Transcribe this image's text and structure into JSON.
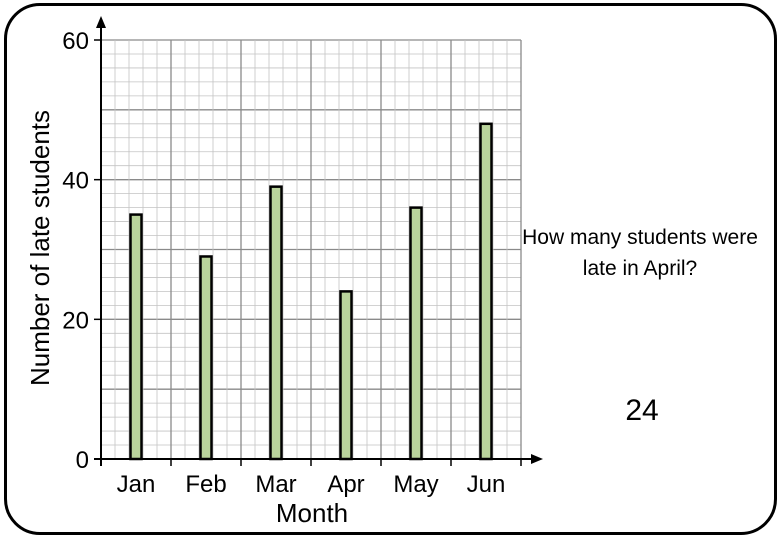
{
  "question": "How many students were late in April?",
  "answer": "24",
  "colors": {
    "bar_fill": "#b9d39b",
    "bar_stroke": "#000000",
    "grid_minor": "#c3c3c3",
    "grid_major": "#8a8a8a"
  },
  "chart_data": {
    "type": "bar",
    "title": "",
    "xlabel": "Month",
    "ylabel": "Number of late students",
    "categories": [
      "Jan",
      "Feb",
      "Mar",
      "Apr",
      "May",
      "Jun"
    ],
    "values": [
      35,
      29,
      39,
      24,
      36,
      48
    ],
    "ylim": [
      0,
      60
    ],
    "yticks": [
      0,
      20,
      40,
      60
    ],
    "grid": true,
    "legend": "none"
  }
}
